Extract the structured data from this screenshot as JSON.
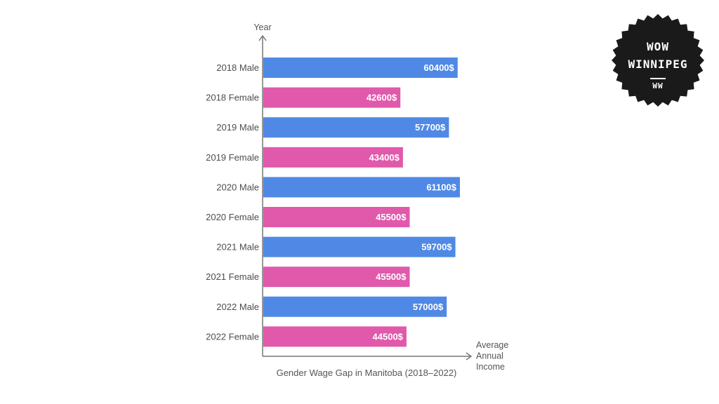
{
  "chart_data": {
    "type": "bar",
    "orientation": "horizontal",
    "title": "Gender Wage Gap in Manitoba (2018–2022)",
    "ylabel": "Year",
    "xlabel": [
      "Average",
      "Annual",
      "Income"
    ],
    "xlim": [
      0,
      65000
    ],
    "grid": false,
    "categories": [
      "2018 Male",
      "2018 Female",
      "2019 Male",
      "2019 Female",
      "2020 Male",
      "2020 Female",
      "2021 Male",
      "2021 Female",
      "2022 Male",
      "2022 Female"
    ],
    "values": [
      60400,
      42600,
      57700,
      43400,
      61100,
      45500,
      59700,
      45500,
      57000,
      44500
    ],
    "value_labels": [
      "60400$",
      "42600$",
      "57700$",
      "43400$",
      "61100$",
      "45500$",
      "59700$",
      "45500$",
      "57000$",
      "44500$"
    ],
    "colors": {
      "male": "#4f89e5",
      "female": "#e059ab",
      "axis": "#777777"
    }
  },
  "logo": {
    "line1": "WOW",
    "line2": "WINNIPEG",
    "line3": "WW",
    "background": "#1a1a1a"
  }
}
